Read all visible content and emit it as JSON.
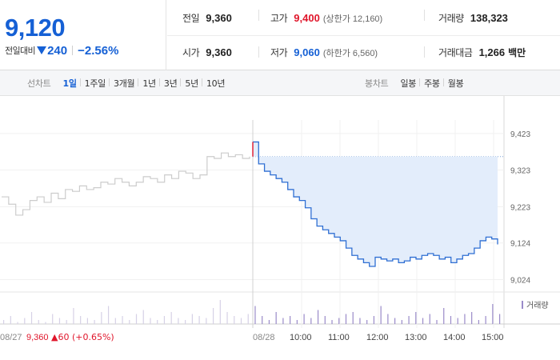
{
  "summary": {
    "current_price": "9,120",
    "change_label": "전일대비",
    "change_value": "240",
    "change_rate": "−2.56%",
    "prev_close_label": "전일",
    "prev_close": "9,360",
    "high_label": "고가",
    "high": "9,400",
    "upper_limit": "(상한가 12,160)",
    "volume_label": "거래량",
    "volume": "138,323",
    "open_label": "시가",
    "open": "9,360",
    "low_label": "저가",
    "low": "9,060",
    "lower_limit": "(하한가 6,560)",
    "trade_value_label": "거래대금",
    "trade_value": "1,266",
    "trade_value_unit": "백만"
  },
  "line_tabs": {
    "title": "선차트",
    "items": [
      "1일",
      "1주일",
      "3개월",
      "1년",
      "3년",
      "5년",
      "10년"
    ],
    "active": 0
  },
  "candle_tabs": {
    "title": "봉차트",
    "items": [
      "일봉",
      "주봉",
      "월봉"
    ]
  },
  "colors": {
    "rise": "#e0162b",
    "fall": "#1560d5",
    "prev_day_line": "#cccccc",
    "fill": "#e3edfb",
    "volume": "#9a8bc9"
  },
  "chart_data": {
    "type": "line",
    "y_ticks": [
      "9,423",
      "9,323",
      "9,223",
      "9,124",
      "9,024"
    ],
    "ylim": [
      8990,
      9460
    ],
    "x_ticks": [
      "08/28",
      "10:00",
      "11:00",
      "12:00",
      "13:00",
      "14:00",
      "15:00"
    ],
    "prev_day_label": "08/27",
    "prev_day_close": "9,360",
    "prev_day_change": "▲60 (+0.65%)",
    "volume_legend": "거래량",
    "prev_day_series": {
      "name": "08/27",
      "values": [
        9250,
        9230,
        9200,
        9215,
        9240,
        9250,
        9235,
        9260,
        9245,
        9270,
        9265,
        9280,
        9270,
        9275,
        9290,
        9285,
        9300,
        9290,
        9280,
        9290,
        9305,
        9300,
        9290,
        9310,
        9300,
        9320,
        9315,
        9300,
        9310,
        9360,
        9355,
        9370,
        9360,
        9365,
        9355,
        9360
      ]
    },
    "today_series": {
      "name": "08/28",
      "values": [
        9400,
        9340,
        9320,
        9310,
        9300,
        9290,
        9270,
        9250,
        9240,
        9220,
        9190,
        9170,
        9160,
        9150,
        9140,
        9130,
        9110,
        9090,
        9080,
        9070,
        9060,
        9085,
        9080,
        9075,
        9080,
        9070,
        9075,
        9085,
        9080,
        9090,
        9095,
        9090,
        9080,
        9085,
        9070,
        9080,
        9090,
        9095,
        9110,
        9130,
        9140,
        9135,
        9120
      ]
    },
    "volumes": [
      2,
      4,
      1,
      3,
      6,
      2,
      1,
      5,
      3,
      2,
      8,
      4,
      3,
      2,
      6,
      9,
      3,
      4,
      2,
      5,
      7,
      3,
      2,
      4,
      6,
      3,
      2,
      5,
      4,
      3,
      8,
      12,
      6,
      4,
      3,
      5,
      9,
      4,
      2,
      6,
      3,
      4,
      2,
      5,
      3,
      7,
      4,
      2,
      3,
      5,
      6,
      3,
      2,
      4,
      9,
      5,
      3,
      2,
      4,
      6,
      3,
      5,
      2,
      8,
      4,
      3,
      5,
      6,
      2,
      4,
      10,
      5
    ]
  }
}
